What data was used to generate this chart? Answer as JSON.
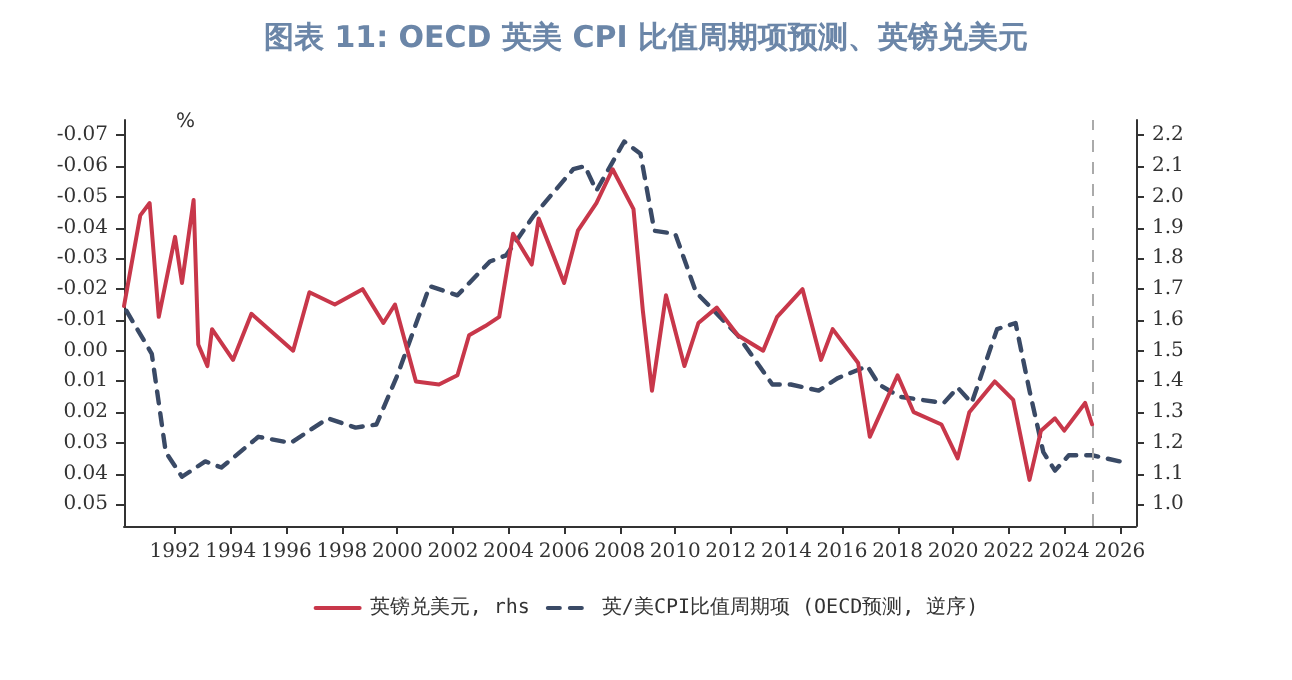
{
  "chart_data": {
    "type": "line",
    "title": "图表 11: OECD 英美 CPI 比值周期项预测、英镑兑美元",
    "ylabel": "%",
    "series": [
      {
        "name": "英镑兑美元, rhs",
        "color": "#c8374a",
        "axis": "y2",
        "line_style": "solid",
        "x": [
          "1990-03",
          "1990-10",
          "1991-02",
          "1991-06",
          "1992-01",
          "1992-04",
          "1992-09",
          "1992-11",
          "1993-03",
          "1993-05",
          "1994-02",
          "1994-10",
          "1996-04",
          "1996-11",
          "1997-10",
          "1998-10",
          "1999-07",
          "1999-12",
          "2000-09",
          "2001-07",
          "2002-03",
          "2002-08",
          "2003-03",
          "2003-09",
          "2004-03",
          "2004-11",
          "2005-02",
          "2006-01",
          "2006-07",
          "2007-03",
          "2007-10",
          "2008-07",
          "2008-11",
          "2009-03",
          "2009-09",
          "2010-05",
          "2010-11",
          "2011-07",
          "2012-04",
          "2013-03",
          "2013-09",
          "2014-08",
          "2015-04",
          "2015-09",
          "2016-08",
          "2017-01",
          "2018-01",
          "2018-08",
          "2019-08",
          "2020-03",
          "2020-08",
          "2021-07",
          "2022-03",
          "2022-10",
          "2023-03",
          "2023-09",
          "2024-01",
          "2024-10",
          "2025-01"
        ],
        "values": [
          1.645,
          1.94,
          1.98,
          1.61,
          1.87,
          1.72,
          1.99,
          1.52,
          1.45,
          1.57,
          1.47,
          1.62,
          1.5,
          1.69,
          1.65,
          1.7,
          1.59,
          1.65,
          1.4,
          1.39,
          1.42,
          1.55,
          1.58,
          1.61,
          1.88,
          1.78,
          1.93,
          1.72,
          1.89,
          1.98,
          2.09,
          1.96,
          1.63,
          1.37,
          1.68,
          1.45,
          1.59,
          1.64,
          1.55,
          1.5,
          1.61,
          1.7,
          1.47,
          1.57,
          1.46,
          1.22,
          1.42,
          1.3,
          1.26,
          1.15,
          1.3,
          1.4,
          1.34,
          1.08,
          1.24,
          1.28,
          1.24,
          1.33,
          1.26
        ]
      },
      {
        "name": "英/美CPI比值周期项 (OECD预测, 逆序)",
        "color": "#3a4a66",
        "line_style": "dashed",
        "x": [
          "1990-04",
          "1991-03",
          "1991-09",
          "1992-04",
          "1993-02",
          "1993-09",
          "1995-01",
          "1996-03",
          "1997-07",
          "1998-07",
          "1999-04",
          "2000-01",
          "2001-03",
          "2002-03",
          "2003-05",
          "2003-12",
          "2004-12",
          "2006-05",
          "2006-10",
          "2007-03",
          "2008-03",
          "2008-10",
          "2009-04",
          "2010-01",
          "2010-10",
          "2012-04",
          "2013-07",
          "2014-03",
          "2015-03",
          "2015-11",
          "2016-12",
          "2017-05",
          "2018-02",
          "2019-09",
          "2020-03",
          "2020-09",
          "2021-08",
          "2022-04",
          "2022-10",
          "2023-04",
          "2023-09",
          "2024-03",
          "2025-01",
          "2026-01"
        ],
        "values": [
          -0.013,
          0.001,
          0.033,
          0.041,
          0.036,
          0.038,
          0.028,
          0.03,
          0.022,
          0.025,
          0.024,
          0.008,
          -0.021,
          -0.018,
          -0.029,
          -0.031,
          -0.044,
          -0.059,
          -0.06,
          -0.052,
          -0.068,
          -0.064,
          -0.039,
          -0.038,
          -0.019,
          -0.005,
          0.011,
          0.011,
          0.013,
          0.009,
          0.005,
          0.011,
          0.015,
          0.017,
          0.012,
          0.017,
          -0.007,
          -0.009,
          0.013,
          0.033,
          0.039,
          0.034,
          0.034,
          0.036
        ]
      }
    ],
    "xlim": [
      "1990-03",
      "2026-08"
    ],
    "xticks": [
      "1992",
      "1994",
      "1996",
      "1998",
      "2000",
      "2002",
      "2004",
      "2006",
      "2008",
      "2010",
      "2012",
      "2014",
      "2016",
      "2018",
      "2020",
      "2022",
      "2024",
      "2026"
    ],
    "ylim": [
      0.057,
      -0.075
    ],
    "yticks": [
      -0.07,
      -0.06,
      -0.05,
      -0.04,
      -0.03,
      -0.02,
      -0.01,
      {
        "value": 0,
        "label": "0.00"
      },
      0.01,
      0.02,
      0.03,
      0.04,
      0.05
    ],
    "y2lim": [
      0.93,
      2.25
    ],
    "y2ticks": [
      {
        "value": 1,
        "label": "1.0"
      },
      1.1,
      1.2,
      1.3,
      1.4,
      1.5,
      1.6,
      1.7,
      1.8,
      1.9,
      {
        "value": 2,
        "label": "2.0"
      },
      2.1,
      2.2
    ],
    "ref_lines": [
      {
        "axis": "x",
        "value": "2025-01",
        "color": "#aaaaaa",
        "line_style": "dashed"
      }
    ],
    "marker": "none",
    "grid": false,
    "legend": "bottom"
  }
}
